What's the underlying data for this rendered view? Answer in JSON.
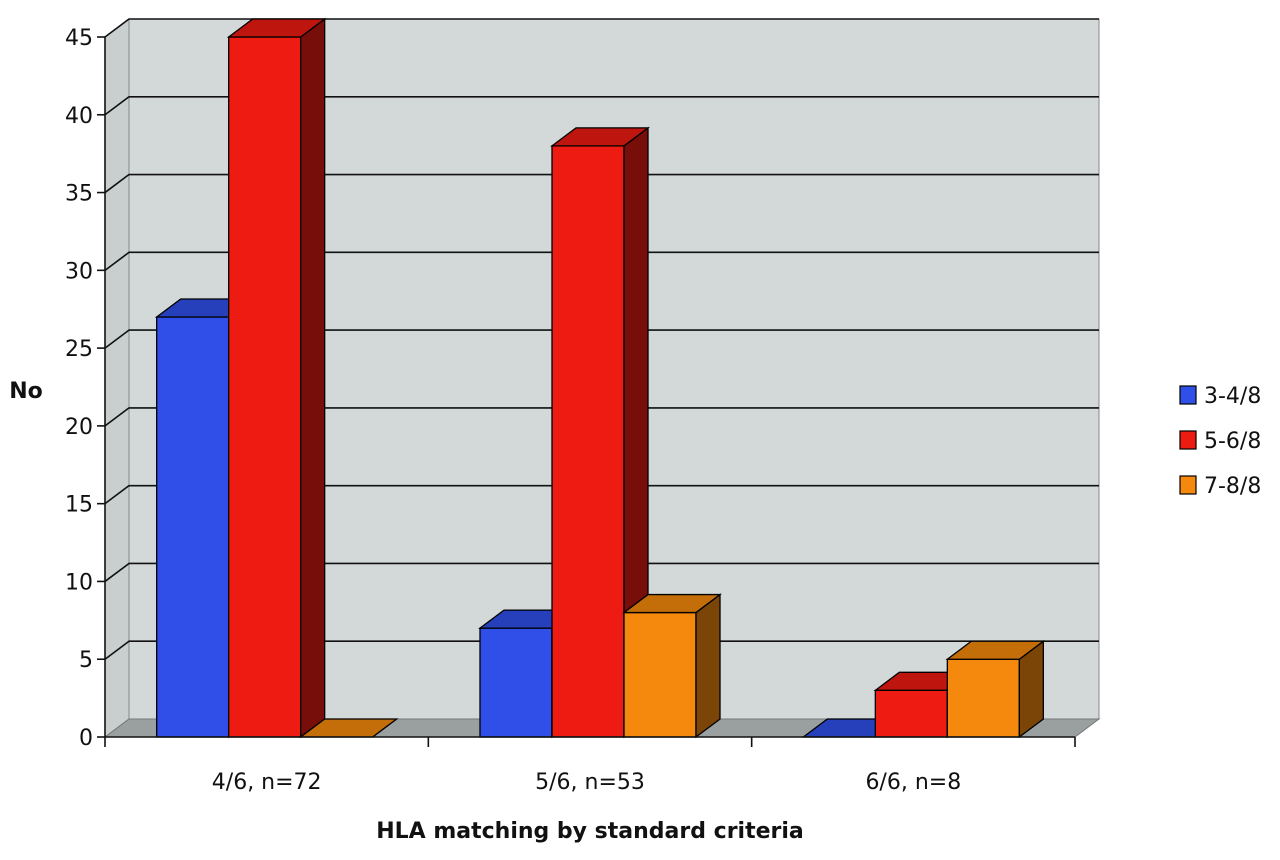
{
  "chart_data": {
    "type": "bar",
    "style": "3d-clustered-column",
    "categories": [
      "4/6, n=72",
      "5/6, n=53",
      "6/6, n=8"
    ],
    "series": [
      {
        "name": "3-4/8",
        "values": [
          27,
          7,
          0
        ],
        "color": "#2f4fe8"
      },
      {
        "name": "5-6/8",
        "values": [
          45,
          38,
          3
        ],
        "color": "#ee1b12"
      },
      {
        "name": "7-8/8",
        "values": [
          0,
          8,
          5
        ],
        "color": "#f5890d"
      }
    ],
    "xlabel": "HLA matching by standard criteria",
    "ylabel": "No",
    "ylim": [
      0,
      45
    ],
    "yticks": [
      0,
      5,
      10,
      15,
      20,
      25,
      30,
      35,
      40,
      45
    ],
    "grid": true,
    "legend_position": "right",
    "wall_color": "#d3d9d9",
    "floor_color": "#9aa0a0"
  }
}
